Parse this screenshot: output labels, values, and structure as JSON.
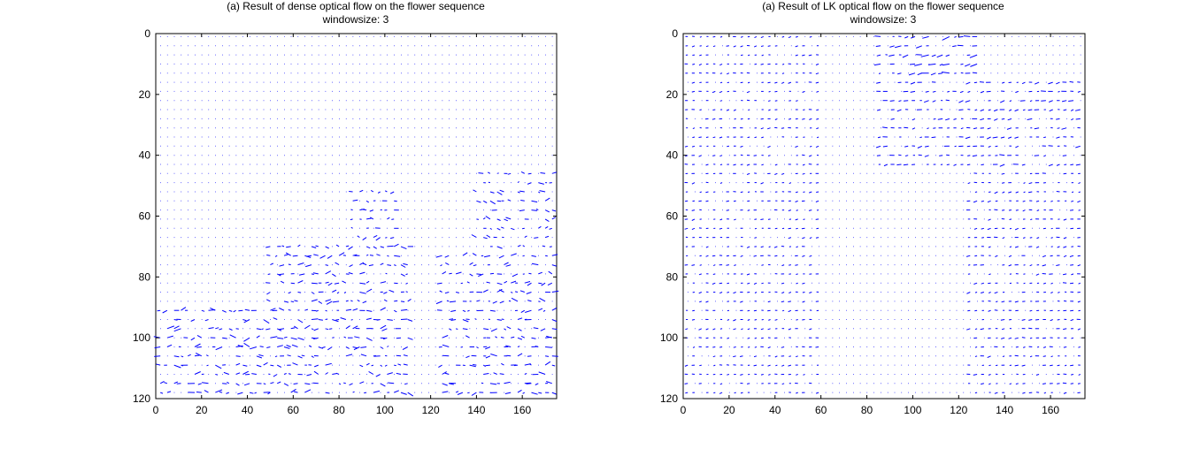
{
  "chart_data": [
    {
      "type": "quiver",
      "title": "(a) Result of dense optical flow on the flower sequence",
      "subtitle": "windowsize: 3",
      "xlim": [
        0,
        175
      ],
      "ylim": [
        120,
        0
      ],
      "y_direction": "reversed",
      "xticks": [
        0,
        20,
        40,
        60,
        80,
        100,
        120,
        140,
        160
      ],
      "yticks": [
        0,
        20,
        40,
        60,
        80,
        100,
        120
      ],
      "grid": false,
      "arrow_color": "#0000ff",
      "sampling_step": 3,
      "flow_regions": [
        {
          "x": [
            2,
            50
          ],
          "y": [
            90,
            120
          ],
          "magnitude": 1.6
        },
        {
          "x": [
            50,
            110
          ],
          "y": [
            70,
            120
          ],
          "magnitude": 1.4
        },
        {
          "x": [
            125,
            175
          ],
          "y": [
            72,
            120
          ],
          "magnitude": 1.5
        },
        {
          "x": [
            140,
            175
          ],
          "y": [
            46,
            72
          ],
          "magnitude": 1.2
        },
        {
          "x": [
            85,
            105
          ],
          "y": [
            50,
            70
          ],
          "magnitude": 1.0
        }
      ]
    },
    {
      "type": "quiver",
      "title": "(a) Result of LK optical flow on the flower sequence",
      "subtitle": "windowsize: 3",
      "xlim": [
        0,
        175
      ],
      "ylim": [
        120,
        0
      ],
      "y_direction": "reversed",
      "xticks": [
        0,
        20,
        40,
        60,
        80,
        100,
        120,
        140,
        160
      ],
      "yticks": [
        0,
        20,
        40,
        60,
        80,
        100,
        120
      ],
      "grid": false,
      "arrow_color": "#0000ff",
      "sampling_step": 3,
      "flow_regions": [
        {
          "x": [
            85,
            130
          ],
          "y": [
            0,
            15
          ],
          "magnitude": 1.8
        },
        {
          "x": [
            85,
            175
          ],
          "y": [
            15,
            45
          ],
          "magnitude": 1.0
        },
        {
          "x": [
            125,
            175
          ],
          "y": [
            45,
            120
          ],
          "magnitude": 0.6
        },
        {
          "x": [
            0,
            60
          ],
          "y": [
            0,
            120
          ],
          "magnitude": 0.4
        }
      ]
    }
  ]
}
